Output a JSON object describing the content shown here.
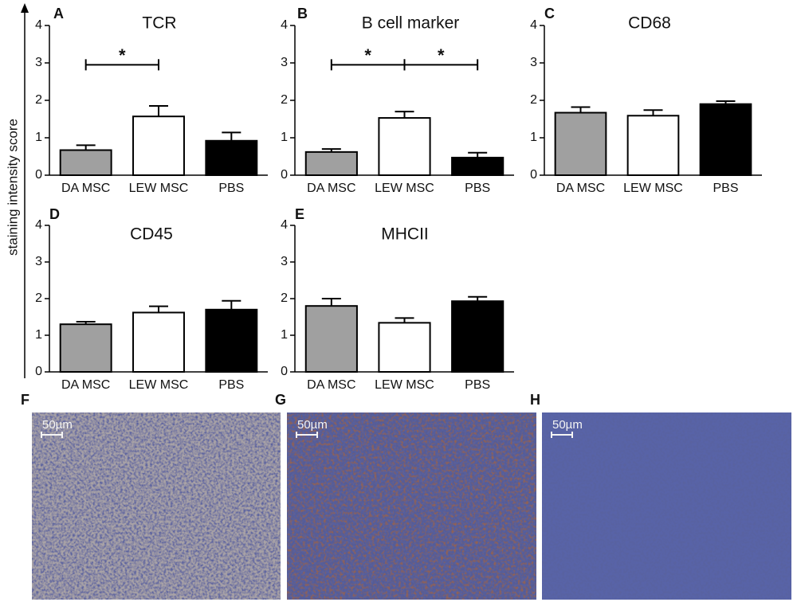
{
  "y_axis_label": "staining intensity score",
  "chart_data": [
    {
      "type": "bar",
      "panel": "A",
      "title": "TCR",
      "categories": [
        "DA MSC",
        "LEW MSC",
        "PBS"
      ],
      "values": [
        0.67,
        1.57,
        0.92
      ],
      "errors": [
        0.13,
        0.28,
        0.22
      ],
      "colors": [
        "#a0a0a0",
        "#ffffff",
        "#000000"
      ],
      "ylim": [
        0,
        4
      ],
      "yticks": [
        0,
        1,
        2,
        3,
        4
      ],
      "significance": [
        {
          "text": "*",
          "from": 0,
          "to": 1,
          "y": 2.95
        }
      ]
    },
    {
      "type": "bar",
      "panel": "B",
      "title": "B cell marker",
      "categories": [
        "DA MSC",
        "LEW MSC",
        "PBS"
      ],
      "values": [
        0.62,
        1.53,
        0.47
      ],
      "errors": [
        0.08,
        0.17,
        0.13
      ],
      "colors": [
        "#a0a0a0",
        "#ffffff",
        "#000000"
      ],
      "ylim": [
        0,
        4
      ],
      "yticks": [
        0,
        1,
        2,
        3,
        4
      ],
      "significance": [
        {
          "text": "*",
          "from": 0,
          "to": 1,
          "y": 2.95
        },
        {
          "text": "*",
          "from": 1,
          "to": 2,
          "y": 2.95
        }
      ]
    },
    {
      "type": "bar",
      "panel": "C",
      "title": "CD68",
      "categories": [
        "DA MSC",
        "LEW MSC",
        "PBS"
      ],
      "values": [
        1.67,
        1.59,
        1.9
      ],
      "errors": [
        0.15,
        0.15,
        0.08
      ],
      "colors": [
        "#a0a0a0",
        "#ffffff",
        "#000000"
      ],
      "ylim": [
        0,
        4
      ],
      "yticks": [
        0,
        1,
        2,
        3,
        4
      ]
    },
    {
      "type": "bar",
      "panel": "D",
      "title": "CD45",
      "categories": [
        "DA MSC",
        "LEW MSC",
        "PBS"
      ],
      "values": [
        1.3,
        1.62,
        1.7
      ],
      "errors": [
        0.07,
        0.17,
        0.24
      ],
      "colors": [
        "#a0a0a0",
        "#ffffff",
        "#000000"
      ],
      "ylim": [
        0,
        4
      ],
      "yticks": [
        0,
        1,
        2,
        3,
        4
      ]
    },
    {
      "type": "bar",
      "panel": "E",
      "title": "MHCII",
      "categories": [
        "DA MSC",
        "LEW MSC",
        "PBS"
      ],
      "values": [
        1.8,
        1.34,
        1.93
      ],
      "errors": [
        0.2,
        0.13,
        0.12
      ],
      "colors": [
        "#a0a0a0",
        "#ffffff",
        "#000000"
      ],
      "ylim": [
        0,
        4
      ],
      "yticks": [
        0,
        1,
        2,
        3,
        4
      ]
    }
  ],
  "images": [
    {
      "panel": "F",
      "scale_label": "50µm"
    },
    {
      "panel": "G",
      "scale_label": "50µm"
    },
    {
      "panel": "H",
      "scale_label": "50µm"
    }
  ]
}
